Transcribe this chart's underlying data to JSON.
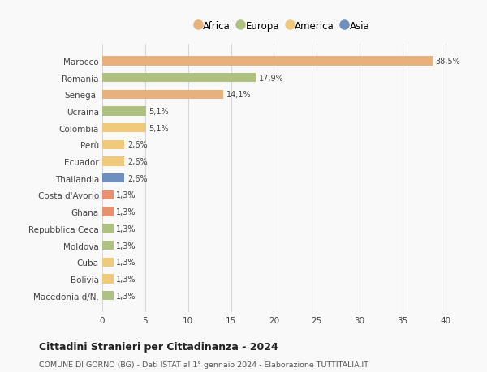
{
  "countries": [
    "Macedonia d/N.",
    "Bolivia",
    "Cuba",
    "Moldova",
    "Repubblica Ceca",
    "Ghana",
    "Costa d'Avorio",
    "Thailandia",
    "Ecuador",
    "Perù",
    "Colombia",
    "Ucraina",
    "Senegal",
    "Romania",
    "Marocco"
  ],
  "values": [
    1.3,
    1.3,
    1.3,
    1.3,
    1.3,
    1.3,
    1.3,
    2.6,
    2.6,
    2.6,
    5.1,
    5.1,
    14.1,
    17.9,
    38.5
  ],
  "labels": [
    "1,3%",
    "1,3%",
    "1,3%",
    "1,3%",
    "1,3%",
    "1,3%",
    "1,3%",
    "2,6%",
    "2,6%",
    "2,6%",
    "5,1%",
    "5,1%",
    "14,1%",
    "17,9%",
    "38,5%"
  ],
  "colors": [
    "#afc180",
    "#f0c97a",
    "#f0c97a",
    "#afc180",
    "#afc180",
    "#e89070",
    "#e89070",
    "#6f8fbe",
    "#f0c97a",
    "#f0c97a",
    "#f0c97a",
    "#afc180",
    "#e8b07a",
    "#afc180",
    "#e8b07a"
  ],
  "legend_labels": [
    "Africa",
    "Europa",
    "America",
    "Asia"
  ],
  "legend_colors": [
    "#e8b07a",
    "#afc180",
    "#f0c97a",
    "#6f8fbe"
  ],
  "title_bold": "Cittadini Stranieri per Cittadinanza - 2024",
  "subtitle": "COMUNE DI GORNO (BG) - Dati ISTAT al 1° gennaio 2024 - Elaborazione TUTTITALIA.IT",
  "xlim": [
    0,
    42
  ],
  "xticks": [
    0,
    5,
    10,
    15,
    20,
    25,
    30,
    35,
    40
  ],
  "bg_color": "#f9f9f9",
  "bar_height": 0.55,
  "grid_color": "#d8d8d8"
}
